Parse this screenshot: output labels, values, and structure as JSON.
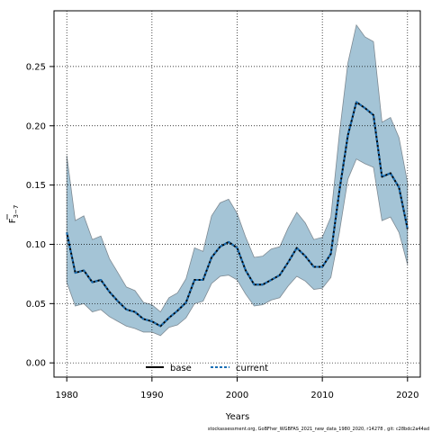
{
  "chart_data": {
    "type": "area",
    "xlabel": "Years",
    "ylabel_main": "F",
    "ylabel_sub": "3−7",
    "xlim": [
      1978.5,
      2021.5
    ],
    "ylim": [
      -0.012,
      0.297
    ],
    "x_ticks": [
      1980,
      1990,
      2000,
      2010,
      2020
    ],
    "x_tick_labels": [
      "1980",
      "1990",
      "2000",
      "2010",
      "2020"
    ],
    "y_ticks": [
      0.0,
      0.05,
      0.1,
      0.15,
      0.2,
      0.25
    ],
    "y_tick_labels": [
      "0.00",
      "0.05",
      "0.10",
      "0.15",
      "0.20",
      "0.25"
    ],
    "grid": true,
    "legend_position": "bottom-center",
    "x": [
      1980,
      1981,
      1982,
      1983,
      1984,
      1985,
      1986,
      1987,
      1988,
      1989,
      1990,
      1991,
      1992,
      1993,
      1994,
      1995,
      1996,
      1997,
      1998,
      1999,
      2000,
      2001,
      2002,
      2003,
      2004,
      2005,
      2006,
      2007,
      2008,
      2009,
      2010,
      2011,
      2012,
      2013,
      2014,
      2015,
      2016,
      2017,
      2018,
      2019,
      2020
    ],
    "series": [
      {
        "name": "base",
        "color": "#000000",
        "style": "solid",
        "values": [
          0.11,
          0.076,
          0.078,
          0.068,
          0.07,
          0.06,
          0.052,
          0.045,
          0.043,
          0.037,
          0.035,
          0.031,
          0.038,
          0.044,
          0.051,
          0.07,
          0.07,
          0.089,
          0.098,
          0.102,
          0.097,
          0.078,
          0.066,
          0.066,
          0.07,
          0.074,
          0.085,
          0.097,
          0.09,
          0.081,
          0.081,
          0.092,
          0.145,
          0.192,
          0.22,
          0.215,
          0.209,
          0.157,
          0.16,
          0.148,
          0.113
        ]
      },
      {
        "name": "current",
        "color": "#1a6fb5",
        "style": "dashed",
        "values": [
          0.11,
          0.076,
          0.078,
          0.068,
          0.07,
          0.06,
          0.052,
          0.045,
          0.043,
          0.037,
          0.035,
          0.031,
          0.038,
          0.044,
          0.051,
          0.07,
          0.07,
          0.089,
          0.098,
          0.102,
          0.097,
          0.078,
          0.066,
          0.066,
          0.07,
          0.074,
          0.085,
          0.097,
          0.09,
          0.081,
          0.081,
          0.092,
          0.145,
          0.192,
          0.22,
          0.215,
          0.209,
          0.157,
          0.16,
          0.148,
          0.113
        ]
      }
    ],
    "band": {
      "color": "#a4c4d6",
      "stroke": "#7e8a93",
      "lower": [
        0.068,
        0.048,
        0.05,
        0.043,
        0.045,
        0.039,
        0.035,
        0.031,
        0.029,
        0.026,
        0.026,
        0.023,
        0.03,
        0.032,
        0.038,
        0.05,
        0.052,
        0.067,
        0.073,
        0.074,
        0.07,
        0.058,
        0.048,
        0.049,
        0.053,
        0.055,
        0.065,
        0.073,
        0.069,
        0.062,
        0.063,
        0.072,
        0.11,
        0.155,
        0.172,
        0.168,
        0.165,
        0.12,
        0.123,
        0.11,
        0.083
      ],
      "upper": [
        0.175,
        0.12,
        0.124,
        0.104,
        0.107,
        0.088,
        0.076,
        0.064,
        0.061,
        0.051,
        0.049,
        0.043,
        0.055,
        0.059,
        0.071,
        0.097,
        0.094,
        0.124,
        0.135,
        0.138,
        0.126,
        0.106,
        0.089,
        0.09,
        0.096,
        0.098,
        0.114,
        0.127,
        0.118,
        0.104,
        0.106,
        0.123,
        0.193,
        0.253,
        0.285,
        0.275,
        0.271,
        0.203,
        0.207,
        0.19,
        0.152
      ]
    }
  },
  "footer_text": "stockassessment.org, GoBFher_WGBFAS_2021_new_data_1980_2020, r14278 , git: c28bdc2a44ad"
}
